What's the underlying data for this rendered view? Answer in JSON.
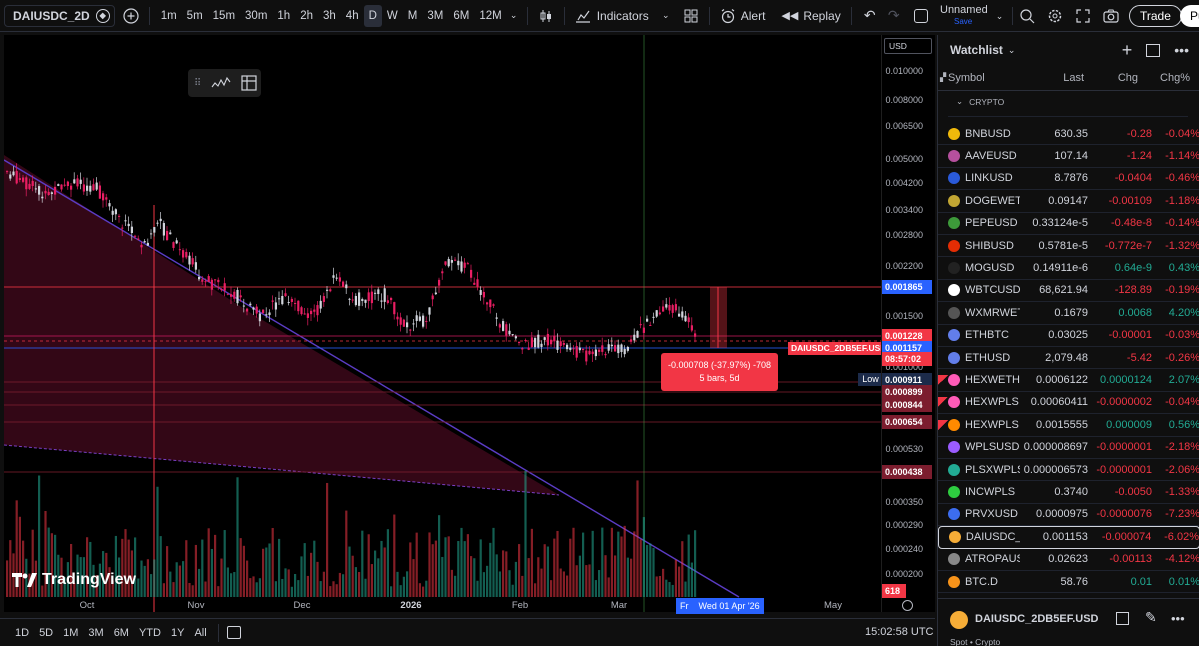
{
  "toolbar": {
    "symbol": "DAIUSDC_2D",
    "intervals": [
      "1m",
      "5m",
      "15m",
      "30m",
      "1h",
      "2h",
      "3h",
      "4h",
      "D",
      "W",
      "M",
      "3M",
      "6M",
      "12M"
    ],
    "active_interval": "D",
    "indicators_label": "Indicators",
    "alert_label": "Alert",
    "replay_label": "Replay",
    "layout_name": "Unnamed",
    "layout_status": "Save",
    "trade_label": "Trade",
    "publish_label": "Pu"
  },
  "chart": {
    "currency": "USD",
    "price_labels": [
      "0.010000",
      "0.008000",
      "0.006500",
      "0.005000",
      "0.004200",
      "0.003400",
      "0.002800",
      "0.002200",
      "0.001500",
      "0.001000",
      "0.000530",
      "0.000350",
      "0.000290",
      "0.000240",
      "0.000200"
    ],
    "tags": {
      "t1": "0.001865",
      "t2": "0.001228",
      "t3": "0.001157",
      "t4": "08:57:02",
      "t5": "0.000911",
      "t6": "0.000899",
      "t7": "0.000844",
      "t8": "0.000654",
      "t9": "0.000438",
      "vol": "618"
    },
    "low_label": "Low",
    "symbol_tag": "DAIUSDC_2DB5EF.USD",
    "measure": {
      "line1": "-0.000708 (-37.97%) -708",
      "line2": "5 bars, 5d"
    },
    "time_labels": [
      "Oct",
      "Nov",
      "Dec",
      "2026",
      "Feb",
      "Mar",
      "May"
    ],
    "crosshair_date": "Wed 01 Apr '26",
    "crosshair_short": "Fr",
    "logo_text": "TradingView"
  },
  "bottom": {
    "ranges": [
      "1D",
      "5D",
      "1M",
      "3M",
      "6M",
      "YTD",
      "1Y",
      "All"
    ],
    "clock": "15:02:58 UTC"
  },
  "watchlist": {
    "title": "Watchlist",
    "col_symbol": "Symbol",
    "col_last": "Last",
    "col_chg": "Chg",
    "col_chgp": "Chg%",
    "section": "CRYPTO",
    "rows": [
      {
        "sym": "BNBUSD",
        "last": "630.35",
        "chg": "-0.28",
        "chgp": "-0.04%",
        "dir": "red",
        "coin": "#f0b90b",
        "flag": ""
      },
      {
        "sym": "AAVEUSD",
        "last": "107.14",
        "chg": "-1.24",
        "chgp": "-1.14%",
        "dir": "red",
        "coin": "#b6509e",
        "flag": ""
      },
      {
        "sym": "LINKUSD",
        "last": "8.7876",
        "chg": "-0.0404",
        "chgp": "-0.46%",
        "dir": "red",
        "coin": "#2a5ada",
        "flag": ""
      },
      {
        "sym": "DOGEWETH",
        "last": "0.09147",
        "chg": "-0.00109",
        "chgp": "-1.18%",
        "dir": "red",
        "coin": "#c2a633",
        "flag": ""
      },
      {
        "sym": "PEPEUSD",
        "last": "0.33124e-5",
        "chg": "-0.48e-8",
        "chgp": "-0.14%",
        "dir": "red",
        "coin": "#3d9a3a",
        "flag": ""
      },
      {
        "sym": "SHIBUSD",
        "last": "0.5781e-5",
        "chg": "-0.772e-7",
        "chgp": "-1.32%",
        "dir": "red",
        "coin": "#e42d04",
        "flag": ""
      },
      {
        "sym": "MOGUSD",
        "last": "0.14911e-6",
        "chg": "0.64e-9",
        "chgp": "0.43%",
        "dir": "grn",
        "coin": "#222222",
        "flag": ""
      },
      {
        "sym": "WBTCUSDC",
        "last": "68,621.94",
        "chg": "-128.89",
        "chgp": "-0.19%",
        "dir": "red",
        "coin": "#ffffff",
        "flag": ""
      },
      {
        "sym": "WXMRWETH",
        "last": "0.1679",
        "chg": "0.0068",
        "chgp": "4.20%",
        "dir": "grn",
        "coin": "#555555",
        "flag": ""
      },
      {
        "sym": "ETHBTC",
        "last": "0.03025",
        "chg": "-0.00001",
        "chgp": "-0.03%",
        "dir": "red",
        "coin": "#627eea",
        "flag": ""
      },
      {
        "sym": "ETHUSD",
        "last": "2,079.48",
        "chg": "-5.42",
        "chgp": "-0.26%",
        "dir": "red",
        "coin": "#627eea",
        "flag": ""
      },
      {
        "sym": "HEXWETH",
        "last": "0.0006122",
        "chg": "0.0000124",
        "chgp": "2.07%",
        "dir": "grn",
        "coin": "#ff5bb8",
        "flag": "#f23645"
      },
      {
        "sym": "HEXWPLS",
        "last": "0.00060411",
        "chg": "-0.0000002",
        "chgp": "-0.04%",
        "dir": "red",
        "coin": "#ff5bb8",
        "flag": "#f23645"
      },
      {
        "sym": "HEXWPLS",
        "last": "0.0015555",
        "chg": "0.000009",
        "chgp": "0.56%",
        "dir": "grn",
        "coin": "#ff8a00",
        "flag": "#f23645"
      },
      {
        "sym": "WPLSUSD",
        "last": "0.000008697",
        "chg": "-0.0000001",
        "chgp": "-2.18%",
        "dir": "red",
        "coin": "#9b5cff",
        "flag": ""
      },
      {
        "sym": "PLSXWPLS",
        "last": "0.000006573",
        "chg": "-0.0000001",
        "chgp": "-2.06%",
        "dir": "red",
        "coin": "#22ab94",
        "flag": ""
      },
      {
        "sym": "INCWPLS",
        "last": "0.3740",
        "chg": "-0.0050",
        "chgp": "-1.33%",
        "dir": "red",
        "coin": "#2ecc40",
        "flag": ""
      },
      {
        "sym": "PRVXUSD",
        "last": "0.0000975",
        "chg": "-0.0000076",
        "chgp": "-7.23%",
        "dir": "red",
        "coin": "#3c6df0",
        "flag": ""
      },
      {
        "sym": "DAIUSDC_",
        "last": "0.001153",
        "chg": "-0.000074",
        "chgp": "-6.02%",
        "dir": "red",
        "coin": "#f5ac37",
        "flag": "",
        "selected": true
      },
      {
        "sym": "ATROPAUSD",
        "last": "0.02623",
        "chg": "-0.00113",
        "chgp": "-4.12%",
        "dir": "red",
        "coin": "#888888",
        "flag": ""
      },
      {
        "sym": "BTC.D",
        "last": "58.76",
        "chg": "0.01",
        "chgp": "0.01%",
        "dir": "grn",
        "coin": "#f7931a",
        "flag": ""
      }
    ],
    "detail_symbol": "DAIUSDC_2DB5EF.USD",
    "detail_sub": "Spot • Crypto"
  },
  "colors": {
    "up": "#22ab94",
    "down": "#f23645",
    "accent": "#2962ff"
  }
}
